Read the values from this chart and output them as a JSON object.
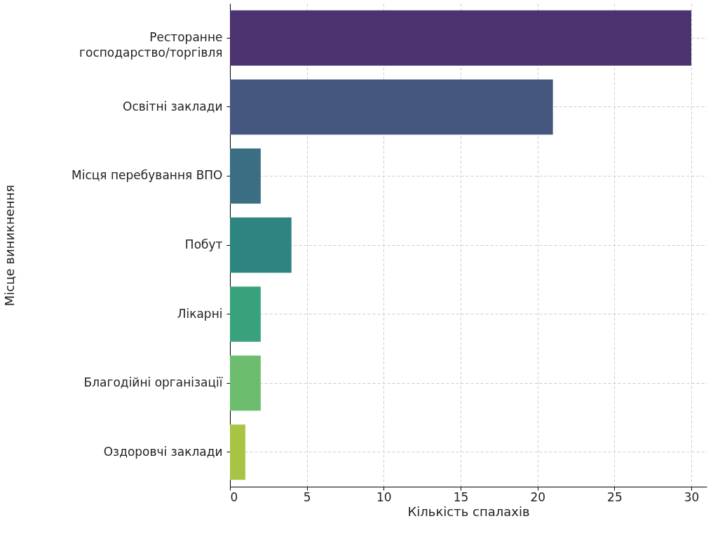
{
  "chart_data": {
    "type": "bar",
    "orientation": "horizontal",
    "xlabel": "Кількість спалахів",
    "ylabel": "Місце виникнення",
    "categories": [
      "Ресторанне\nгосподарство/торгівля",
      "Освітні заклади",
      "Місця перебування ВПО",
      "Побут",
      "Лікарні",
      "Благодійні організації",
      "Оздоровчі заклади"
    ],
    "values": [
      30,
      21,
      2,
      4,
      2,
      2,
      1
    ],
    "colors": [
      "#4b3370",
      "#45577f",
      "#3b6e83",
      "#2e8480",
      "#39a27d",
      "#6cbe6e",
      "#a8c444"
    ],
    "xlim": [
      0,
      31
    ],
    "xticks": [
      0,
      5,
      10,
      15,
      20,
      25,
      30
    ],
    "grid": true
  }
}
